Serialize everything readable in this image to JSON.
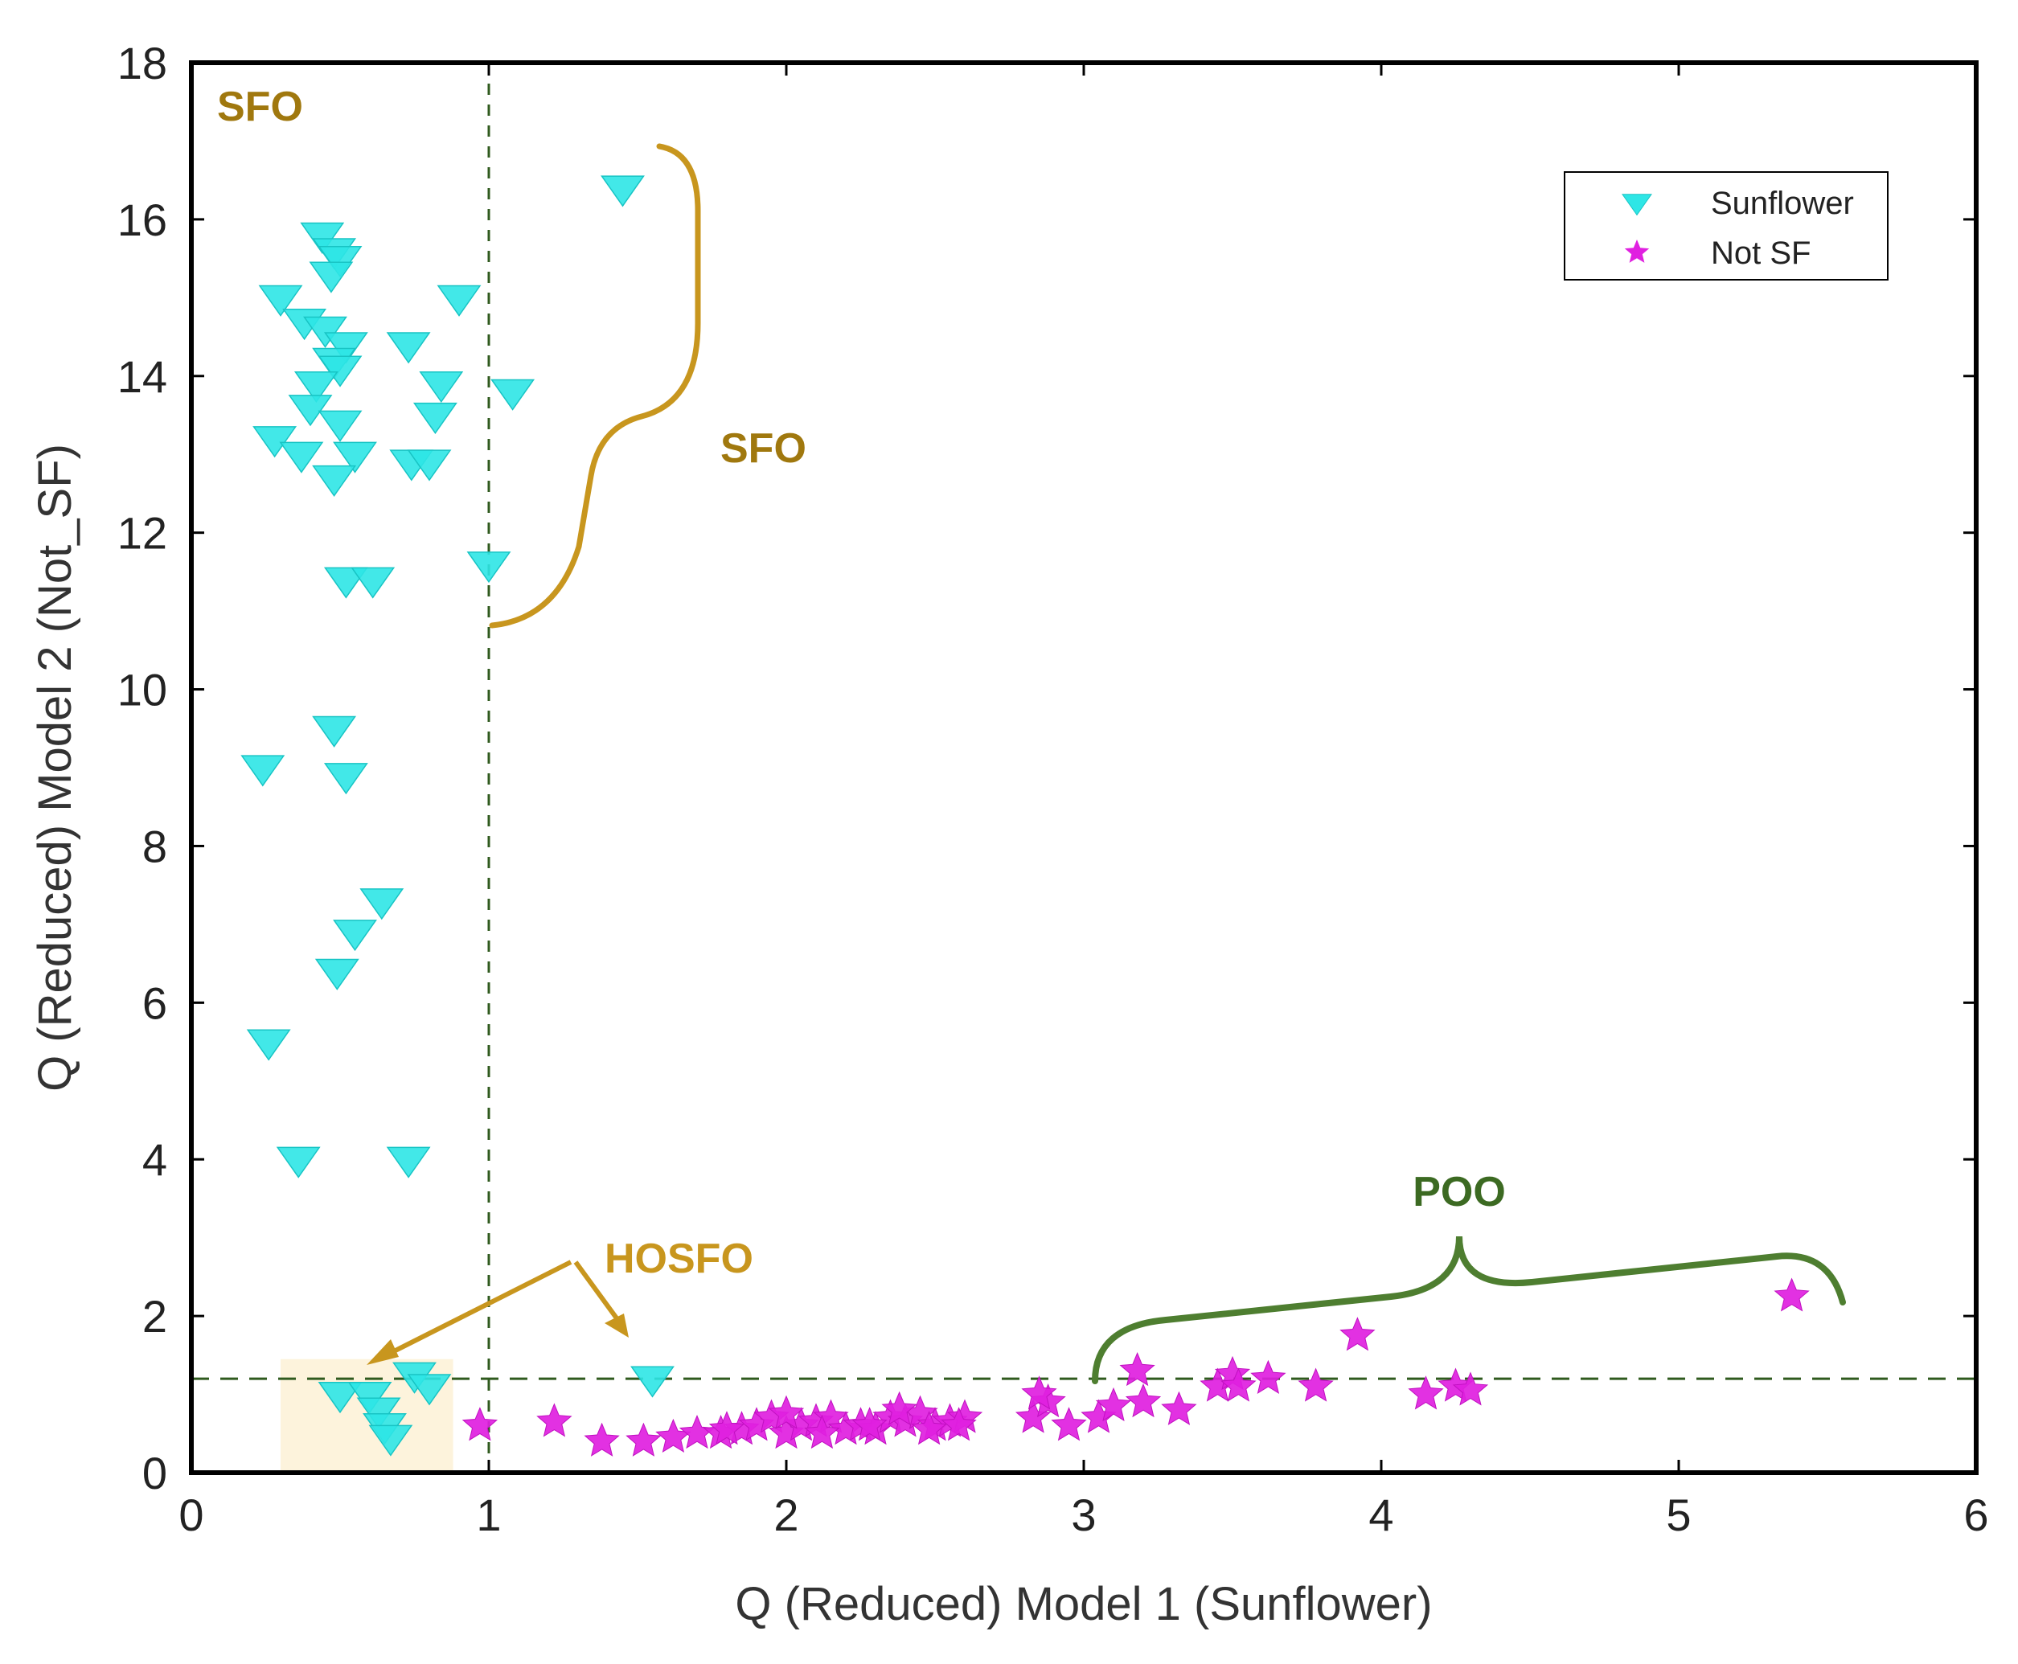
{
  "chart_data": {
    "type": "scatter",
    "xlabel": "Q (Reduced) Model 1 (Sunflower)",
    "ylabel": "Q (Reduced) Model 2 (Not_SF)",
    "xlim": [
      0,
      6
    ],
    "ylim": [
      0,
      18
    ],
    "xticks": [
      0,
      1,
      2,
      3,
      4,
      5,
      6
    ],
    "yticks": [
      0,
      2,
      4,
      6,
      8,
      10,
      12,
      14,
      16,
      18
    ],
    "grid": false,
    "legend_position": "top-right",
    "thresholds": {
      "x": 1.0,
      "y": 1.2
    },
    "colors": {
      "sunflower": "#2ee6e6",
      "not_sf": "#e020e0",
      "gold": "#c8961e",
      "gold_text": "#a0780e",
      "green": "#4e7e30",
      "green_text": "#3c6a22",
      "threshold": "#2f5a1e",
      "hosfo_box": "#fdf3dc"
    },
    "series": [
      {
        "name": "Sunflower",
        "marker": "triangle-down",
        "color": "#2ee6e6",
        "points": [
          [
            1.45,
            16.4
          ],
          [
            0.44,
            15.8
          ],
          [
            0.48,
            15.6
          ],
          [
            0.5,
            15.5
          ],
          [
            0.47,
            15.3
          ],
          [
            0.3,
            15.0
          ],
          [
            0.9,
            15.0
          ],
          [
            0.38,
            14.7
          ],
          [
            0.45,
            14.6
          ],
          [
            0.52,
            14.4
          ],
          [
            0.73,
            14.4
          ],
          [
            0.48,
            14.2
          ],
          [
            0.5,
            14.1
          ],
          [
            0.42,
            13.9
          ],
          [
            0.84,
            13.9
          ],
          [
            1.08,
            13.8
          ],
          [
            0.4,
            13.6
          ],
          [
            0.5,
            13.4
          ],
          [
            0.82,
            13.5
          ],
          [
            0.28,
            13.2
          ],
          [
            0.37,
            13.0
          ],
          [
            0.55,
            13.0
          ],
          [
            0.74,
            12.9
          ],
          [
            0.8,
            12.9
          ],
          [
            0.48,
            12.7
          ],
          [
            0.52,
            11.4
          ],
          [
            0.61,
            11.4
          ],
          [
            1.0,
            11.6
          ],
          [
            0.48,
            9.5
          ],
          [
            0.24,
            9.0
          ],
          [
            0.52,
            8.9
          ],
          [
            0.64,
            7.3
          ],
          [
            0.55,
            6.9
          ],
          [
            0.49,
            6.4
          ],
          [
            0.26,
            5.5
          ],
          [
            0.36,
            4.0
          ],
          [
            0.73,
            4.0
          ],
          [
            1.55,
            1.2
          ],
          [
            0.75,
            1.25
          ],
          [
            0.8,
            1.1
          ],
          [
            0.5,
            1.0
          ],
          [
            0.6,
            1.0
          ],
          [
            0.63,
            0.8
          ],
          [
            0.65,
            0.6
          ],
          [
            0.67,
            0.45
          ]
        ]
      },
      {
        "name": "Not SF",
        "marker": "star",
        "color": "#e020e0",
        "points": [
          [
            0.97,
            0.6
          ],
          [
            1.22,
            0.65
          ],
          [
            1.38,
            0.4
          ],
          [
            1.52,
            0.4
          ],
          [
            1.62,
            0.45
          ],
          [
            1.7,
            0.5
          ],
          [
            1.78,
            0.5
          ],
          [
            1.85,
            0.55
          ],
          [
            1.9,
            0.6
          ],
          [
            1.95,
            0.7
          ],
          [
            2.0,
            0.5
          ],
          [
            2.05,
            0.6
          ],
          [
            2.1,
            0.65
          ],
          [
            2.15,
            0.7
          ],
          [
            2.2,
            0.55
          ],
          [
            2.25,
            0.6
          ],
          [
            2.3,
            0.55
          ],
          [
            2.35,
            0.7
          ],
          [
            2.4,
            0.65
          ],
          [
            2.45,
            0.75
          ],
          [
            2.5,
            0.6
          ],
          [
            2.55,
            0.65
          ],
          [
            2.6,
            0.7
          ],
          [
            1.8,
            0.55
          ],
          [
            2.0,
            0.75
          ],
          [
            2.12,
            0.5
          ],
          [
            2.28,
            0.6
          ],
          [
            2.38,
            0.8
          ],
          [
            2.48,
            0.55
          ],
          [
            2.58,
            0.6
          ],
          [
            2.83,
            0.7
          ],
          [
            2.88,
            0.9
          ],
          [
            2.85,
            1.0
          ],
          [
            2.95,
            0.6
          ],
          [
            3.05,
            0.7
          ],
          [
            3.1,
            0.85
          ],
          [
            3.18,
            1.3
          ],
          [
            3.2,
            0.9
          ],
          [
            3.32,
            0.8
          ],
          [
            3.45,
            1.1
          ],
          [
            3.5,
            1.25
          ],
          [
            3.52,
            1.1
          ],
          [
            3.62,
            1.2
          ],
          [
            3.78,
            1.1
          ],
          [
            3.92,
            1.75
          ],
          [
            4.15,
            1.0
          ],
          [
            4.25,
            1.1
          ],
          [
            4.3,
            1.05
          ],
          [
            5.38,
            2.25
          ]
        ]
      }
    ],
    "annotations": [
      {
        "text": "SFO",
        "role": "region-label"
      },
      {
        "text": "SFO",
        "role": "brace-label"
      },
      {
        "text": "HOSFO",
        "role": "arrow-label"
      },
      {
        "text": "POO",
        "role": "brace-label"
      }
    ]
  }
}
